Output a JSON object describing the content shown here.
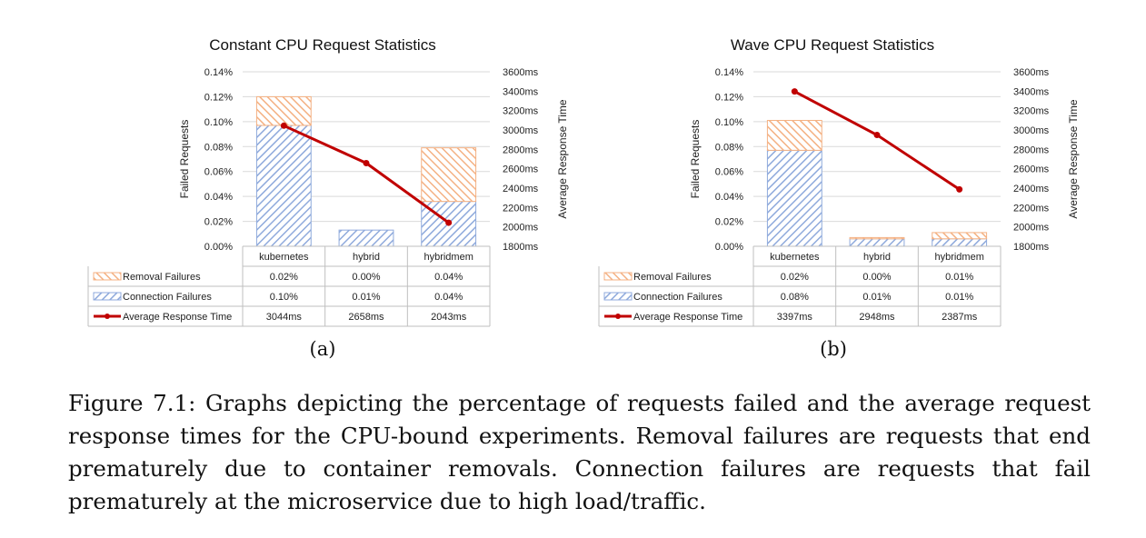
{
  "figure": {
    "caption": "Figure 7.1: Graphs depicting the percentage of requests failed and the average request response times for the CPU-bound experiments. Removal failures are requests that end prematurely due to container removals. Connection failures are requests that fail prematurely at the microservice due to high load/traffic.",
    "panel_labels": [
      "(a)",
      "(b)"
    ]
  },
  "colors": {
    "removal": "#f4b183",
    "connection": "#8faadc",
    "line": "#c00000",
    "grid": "#d9d9d9"
  },
  "chart_data": [
    {
      "type": "bar",
      "title": "Constant CPU Request Statistics",
      "ylabel": "Failed Requests",
      "y2label": "Average Response Time",
      "categories": [
        "kubernetes",
        "hybrid",
        "hybridmem"
      ],
      "ylim": [
        0,
        0.14
      ],
      "y_ticks": [
        "0.00%",
        "0.02%",
        "0.04%",
        "0.06%",
        "0.08%",
        "0.10%",
        "0.12%",
        "0.14%"
      ],
      "y2lim": [
        1800,
        3600
      ],
      "y2_ticks": [
        "1800ms",
        "2000ms",
        "2200ms",
        "2400ms",
        "2600ms",
        "2800ms",
        "3000ms",
        "3200ms",
        "3400ms",
        "3600ms"
      ],
      "stacked": true,
      "series": [
        {
          "name": "Connection Failures",
          "kind": "bar",
          "values": [
            0.097,
            0.013,
            0.036
          ],
          "table": [
            "0.10%",
            "0.01%",
            "0.04%"
          ]
        },
        {
          "name": "Removal Failures",
          "kind": "bar",
          "values": [
            0.023,
            0.0,
            0.043
          ],
          "table": [
            "0.02%",
            "0.00%",
            "0.04%"
          ]
        },
        {
          "name": "Average Response Time",
          "kind": "line",
          "axis": "secondary",
          "values": [
            3044,
            2658,
            2043
          ],
          "table": [
            "3044ms",
            "2658ms",
            "2043ms"
          ]
        }
      ],
      "table_order": [
        1,
        0,
        2
      ],
      "grid": true,
      "legend": "data-table"
    },
    {
      "type": "bar",
      "title": "Wave CPU Request Statistics",
      "ylabel": "Failed Requests",
      "y2label": "Average Response Time",
      "categories": [
        "kubernetes",
        "hybrid",
        "hybridmem"
      ],
      "ylim": [
        0,
        0.14
      ],
      "y_ticks": [
        "0.00%",
        "0.02%",
        "0.04%",
        "0.06%",
        "0.08%",
        "0.10%",
        "0.12%",
        "0.14%"
      ],
      "y2lim": [
        1800,
        3600
      ],
      "y2_ticks": [
        "1800ms",
        "2000ms",
        "2200ms",
        "2400ms",
        "2600ms",
        "2800ms",
        "3000ms",
        "3200ms",
        "3400ms",
        "3600ms"
      ],
      "stacked": true,
      "series": [
        {
          "name": "Connection Failures",
          "kind": "bar",
          "values": [
            0.077,
            0.006,
            0.006
          ],
          "table": [
            "0.08%",
            "0.01%",
            "0.01%"
          ]
        },
        {
          "name": "Removal Failures",
          "kind": "bar",
          "values": [
            0.024,
            0.001,
            0.005
          ],
          "table": [
            "0.02%",
            "0.00%",
            "0.01%"
          ]
        },
        {
          "name": "Average Response Time",
          "kind": "line",
          "axis": "secondary",
          "values": [
            3397,
            2948,
            2387
          ],
          "table": [
            "3397ms",
            "2948ms",
            "2387ms"
          ]
        }
      ],
      "table_order": [
        1,
        0,
        2
      ],
      "grid": true,
      "legend": "data-table"
    }
  ]
}
